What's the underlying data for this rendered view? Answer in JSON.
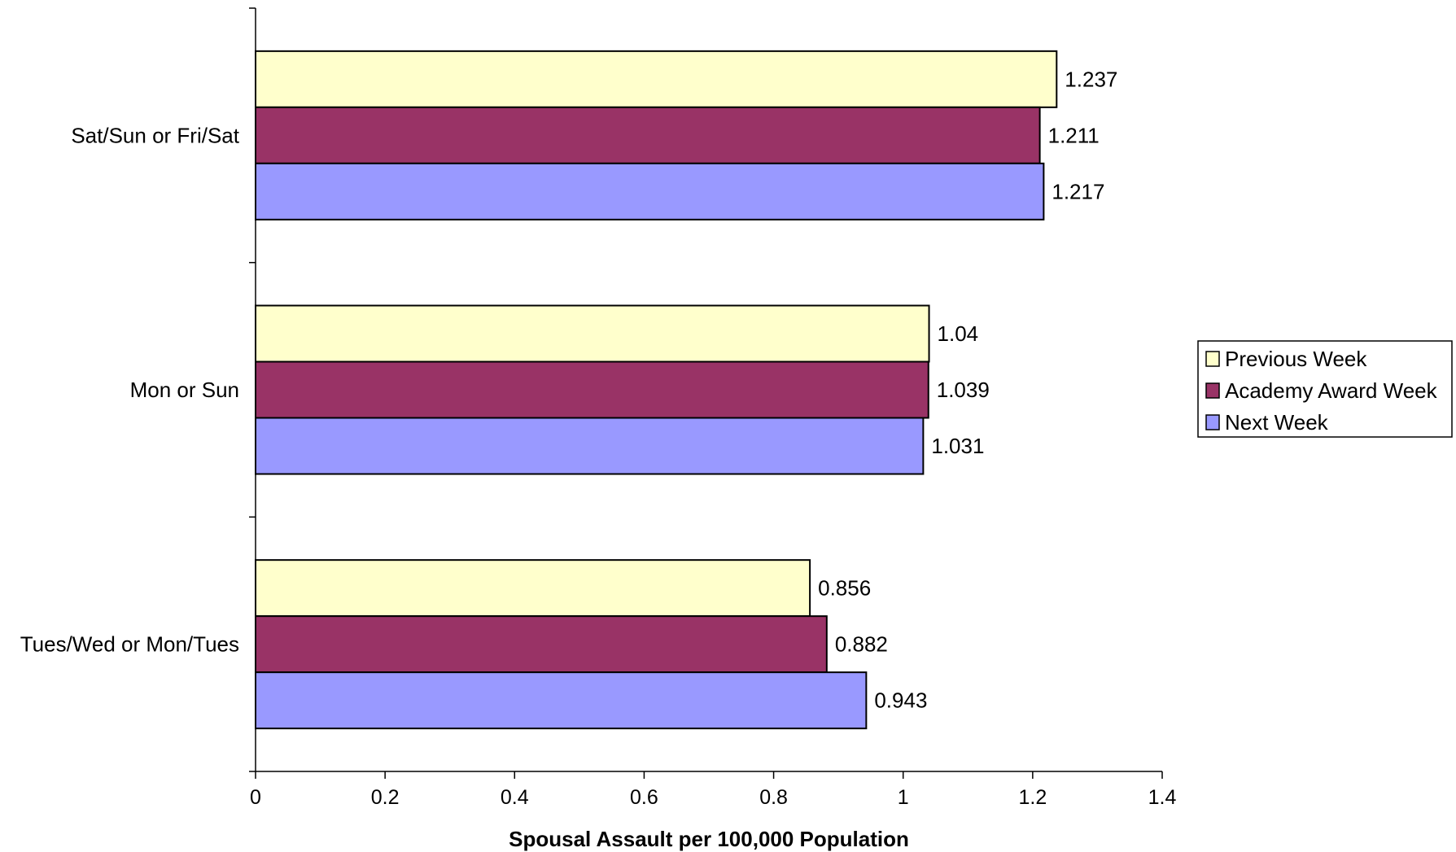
{
  "chart_data": {
    "type": "bar",
    "orientation": "horizontal",
    "categories": [
      "Sat/Sun or Fri/Sat",
      "Mon or Sun",
      "Tues/Wed or Mon/Tues"
    ],
    "series": [
      {
        "name": "Previous Week",
        "color": "#FFFFCC",
        "values": [
          1.237,
          1.04,
          0.856
        ],
        "labels": [
          "1.237",
          "1.04",
          "0.856"
        ]
      },
      {
        "name": "Academy Award Week",
        "color": "#993366",
        "values": [
          1.211,
          1.039,
          0.882
        ],
        "labels": [
          "1.211",
          "1.039",
          "0.882"
        ]
      },
      {
        "name": "Next Week",
        "color": "#9999FF",
        "values": [
          1.217,
          1.031,
          0.943
        ],
        "labels": [
          "1.217",
          "1.031",
          "0.943"
        ]
      }
    ],
    "title": "",
    "xlabel": "Spousal Assault per 100,000 Population",
    "ylabel": "",
    "xlim": [
      0,
      1.4
    ],
    "xticks": [
      0,
      0.2,
      0.4,
      0.6,
      0.8,
      1,
      1.2,
      1.4
    ],
    "xtick_labels": [
      "0",
      "0.2",
      "0.4",
      "0.6",
      "0.8",
      "1",
      "1.2",
      "1.4"
    ],
    "grid": false,
    "legend_position": "right"
  }
}
